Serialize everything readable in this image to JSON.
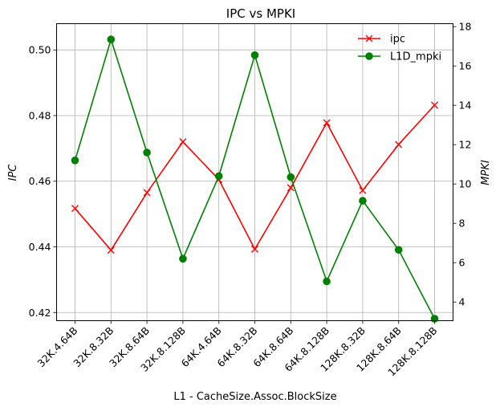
{
  "chart_data": {
    "type": "line",
    "title": "IPC vs MPKI",
    "xlabel": "L1 - CacheSize.Assoc.BlockSize",
    "categories": [
      "32K.4.64B",
      "32K.8.32B",
      "32K.8.64B",
      "32K.8.128B",
      "64K.4.64B",
      "64K.8.32B",
      "64K.8.64B",
      "64K.8.128B",
      "128K.8.32B",
      "128K.8.64B",
      "128K.8.128B"
    ],
    "left_axis": {
      "label": "IPC",
      "ylim": [
        0.4175,
        0.508
      ],
      "ticks": [
        0.42,
        0.44,
        0.46,
        0.48,
        0.5
      ],
      "tick_labels": [
        "0.42",
        "0.44",
        "0.46",
        "0.48",
        "0.50"
      ]
    },
    "right_axis": {
      "label": "MPKI",
      "ylim": [
        3.05,
        18.15
      ],
      "ticks": [
        4,
        6,
        8,
        10,
        12,
        14,
        16,
        18
      ],
      "tick_labels": [
        "4",
        "6",
        "8",
        "10",
        "12",
        "14",
        "16",
        "18"
      ]
    },
    "series": [
      {
        "name": "ipc",
        "axis": "left",
        "color": "#ff0000",
        "marker": "x",
        "values": [
          0.4517,
          0.439,
          0.4565,
          0.472,
          0.4605,
          0.4393,
          0.458,
          0.4778,
          0.4572,
          0.4712,
          0.4832
        ]
      },
      {
        "name": "L1D_mpki",
        "axis": "right",
        "color": "#008000",
        "marker": "o",
        "values": [
          11.2,
          17.35,
          11.6,
          6.2,
          10.4,
          16.55,
          10.35,
          5.05,
          9.15,
          6.65,
          3.15
        ]
      }
    ],
    "legend": {
      "placement": "top-right",
      "entries": [
        "ipc",
        "L1D_mpki"
      ]
    },
    "grid": true
  }
}
